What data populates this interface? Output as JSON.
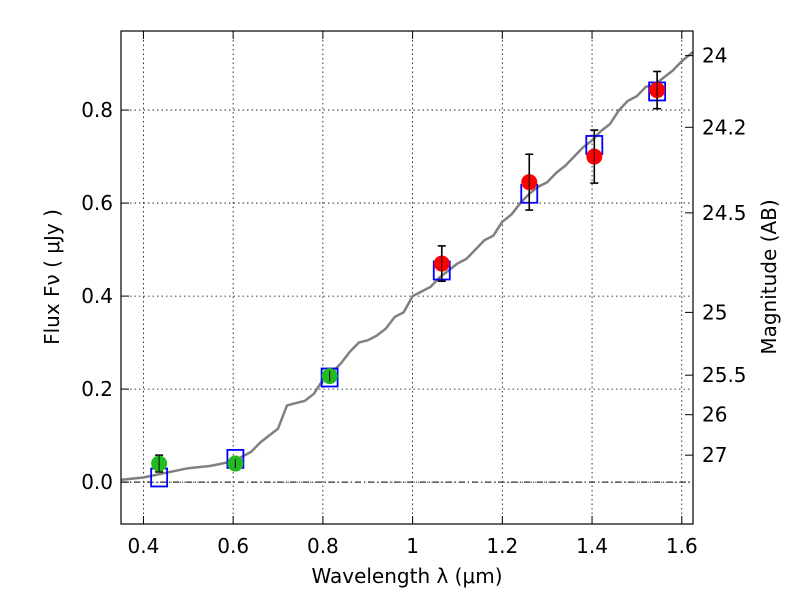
{
  "chart_data": {
    "type": "scatter",
    "xlabel": "Wavelength  λ (μm)",
    "ylabel": "Flux  Fν  ( μJy )",
    "ylabel_right": "Magnitude (AB)",
    "xlim": [
      0.35,
      1.625
    ],
    "ylim": [
      -0.09,
      0.97
    ],
    "grid": true,
    "x_ticks": [
      0.4,
      0.6,
      0.8,
      1.0,
      1.2,
      1.4,
      1.6
    ],
    "x_tick_labels": [
      "0.4",
      "0.6",
      "0.8",
      "1",
      "1.2",
      "1.4",
      "1.6"
    ],
    "y_ticks": [
      0.0,
      0.2,
      0.4,
      0.6,
      0.8
    ],
    "y_tick_labels": [
      "0.0",
      "0.2",
      "0.4",
      "0.6",
      "0.8"
    ],
    "right_ticks": [
      {
        "label": "24",
        "flux": 0.917
      },
      {
        "label": "24.2",
        "flux": 0.763
      },
      {
        "label": "24.5",
        "flux": 0.579
      },
      {
        "label": "25",
        "flux": 0.365
      },
      {
        "label": "25.5",
        "flux": 0.23
      },
      {
        "label": "26",
        "flux": 0.145
      },
      {
        "label": "27",
        "flux": 0.058
      }
    ],
    "zero_line": 0,
    "colors": {
      "model": "#808080",
      "model_box": "#0000ff",
      "red_points": "#ff0000",
      "green_points": "#22bb22",
      "errorbar": "#000000"
    },
    "model_spectrum": {
      "x": [
        0.35,
        0.4,
        0.45,
        0.5,
        0.55,
        0.6,
        0.62,
        0.64,
        0.66,
        0.68,
        0.7,
        0.72,
        0.74,
        0.76,
        0.78,
        0.8,
        0.82,
        0.84,
        0.86,
        0.88,
        0.9,
        0.92,
        0.94,
        0.96,
        0.98,
        1.0,
        1.02,
        1.04,
        1.06,
        1.08,
        1.1,
        1.12,
        1.14,
        1.16,
        1.18,
        1.2,
        1.22,
        1.24,
        1.26,
        1.28,
        1.3,
        1.32,
        1.34,
        1.36,
        1.38,
        1.4,
        1.42,
        1.44,
        1.46,
        1.48,
        1.5,
        1.52,
        1.54,
        1.56,
        1.58,
        1.6,
        1.625
      ],
      "y": [
        0.005,
        0.01,
        0.02,
        0.03,
        0.035,
        0.045,
        0.055,
        0.065,
        0.085,
        0.1,
        0.115,
        0.165,
        0.17,
        0.175,
        0.19,
        0.22,
        0.235,
        0.255,
        0.28,
        0.3,
        0.305,
        0.315,
        0.33,
        0.355,
        0.365,
        0.4,
        0.41,
        0.42,
        0.44,
        0.455,
        0.47,
        0.48,
        0.5,
        0.52,
        0.53,
        0.56,
        0.575,
        0.6,
        0.62,
        0.635,
        0.645,
        0.665,
        0.68,
        0.7,
        0.72,
        0.735,
        0.755,
        0.77,
        0.8,
        0.82,
        0.83,
        0.85,
        0.855,
        0.87,
        0.885,
        0.905,
        0.925
      ]
    },
    "model_boxes": [
      {
        "x": 0.435,
        "y": 0.01
      },
      {
        "x": 0.605,
        "y": 0.05
      },
      {
        "x": 0.815,
        "y": 0.225
      },
      {
        "x": 1.065,
        "y": 0.455
      },
      {
        "x": 1.26,
        "y": 0.62
      },
      {
        "x": 1.405,
        "y": 0.725
      },
      {
        "x": 1.545,
        "y": 0.84
      }
    ],
    "series": [
      {
        "name": "red",
        "points": [
          {
            "x": 1.065,
            "y": 0.47,
            "err": 0.038
          },
          {
            "x": 1.26,
            "y": 0.645,
            "err": 0.06
          },
          {
            "x": 1.405,
            "y": 0.7,
            "err": 0.057
          },
          {
            "x": 1.545,
            "y": 0.843,
            "err": 0.04
          }
        ]
      },
      {
        "name": "green",
        "points": [
          {
            "x": 0.435,
            "y": 0.04,
            "err": 0.018
          },
          {
            "x": 0.605,
            "y": 0.04,
            "err": 0.01
          },
          {
            "x": 0.815,
            "y": 0.228,
            "err": 0.012
          }
        ]
      }
    ]
  }
}
